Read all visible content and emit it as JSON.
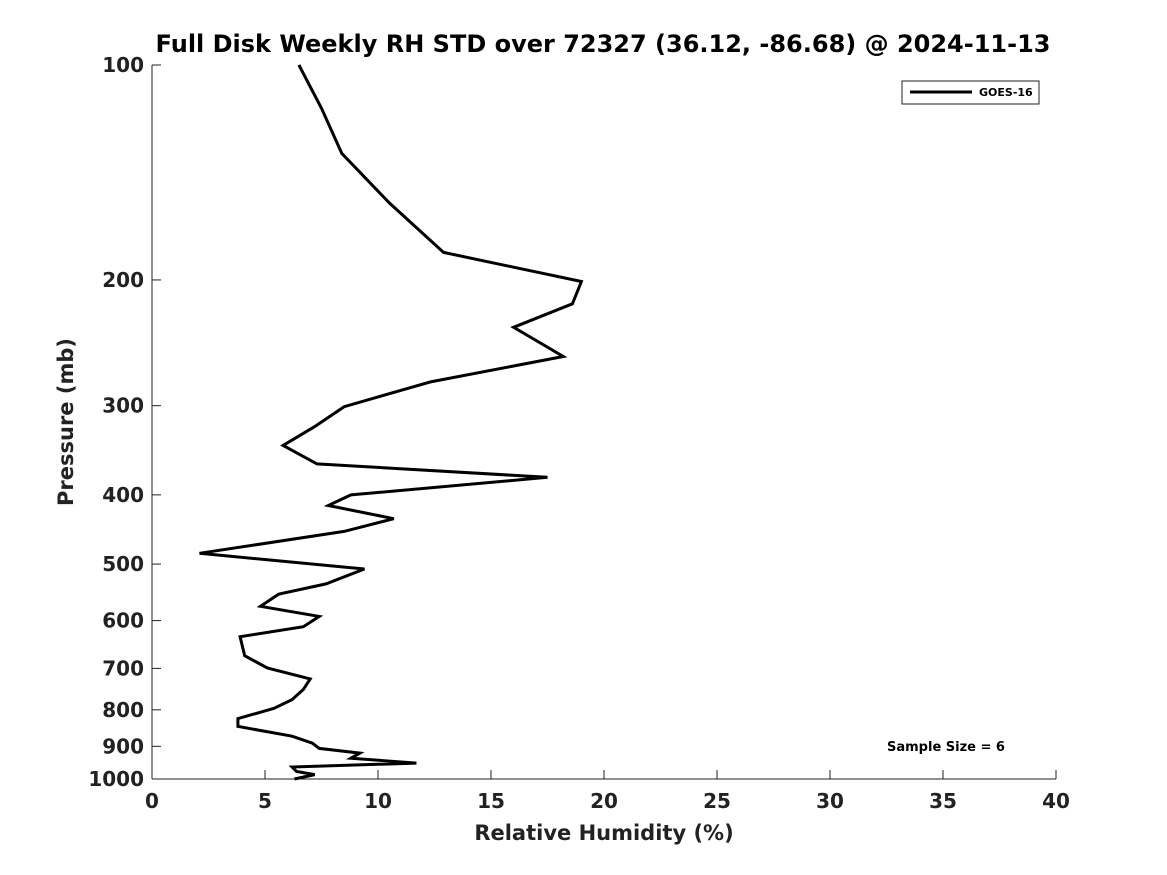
{
  "chart_data": {
    "type": "line",
    "title": "Full Disk Weekly RH STD over 72327 (36.12, -86.68) @ 2024-11-13",
    "xlabel": "Relative Humidity (%)",
    "ylabel": "Pressure (mb)",
    "xlim": [
      0,
      40
    ],
    "ylim": [
      1000,
      100
    ],
    "y_scale": "log",
    "grid": false,
    "legend_position": "top-right",
    "x_ticks": [
      "0",
      "5",
      "10",
      "15",
      "20",
      "25",
      "30",
      "35",
      "40"
    ],
    "y_ticks": [
      "100",
      "200",
      "300",
      "400",
      "500",
      "600",
      "700",
      "800",
      "900",
      "1000"
    ],
    "series": [
      {
        "name": "GOES-16",
        "color": "#000000",
        "x": [
          6.5,
          7.5,
          8.4,
          10.5,
          12.9,
          19.0,
          18.6,
          16.0,
          18.2,
          12.3,
          8.5,
          7.2,
          5.8,
          7.3,
          17.5,
          8.8,
          7.8,
          10.7,
          8.5,
          2.1,
          9.4,
          7.7,
          5.6,
          4.8,
          7.4,
          6.7,
          3.9,
          4.0,
          4.1,
          5.1,
          7.0,
          6.7,
          6.2,
          5.4,
          3.8,
          3.8,
          6.2,
          7.1,
          7.4,
          9.2,
          8.8,
          11.7,
          6.2,
          6.4,
          7.2,
          6.3
        ],
        "y": [
          100,
          115,
          133,
          156,
          183,
          201,
          216,
          233,
          256,
          278,
          301,
          321,
          341,
          362,
          378,
          400,
          414,
          432,
          450,
          483,
          508,
          533,
          551,
          573,
          592,
          612,
          632,
          652,
          672,
          699,
          724,
          749,
          774,
          796,
          823,
          844,
          871,
          891,
          906,
          920,
          935,
          950,
          962,
          976,
          986,
          1000
        ]
      }
    ],
    "legend": [
      "GOES-16"
    ],
    "annotation": "Sample Size = 6"
  }
}
